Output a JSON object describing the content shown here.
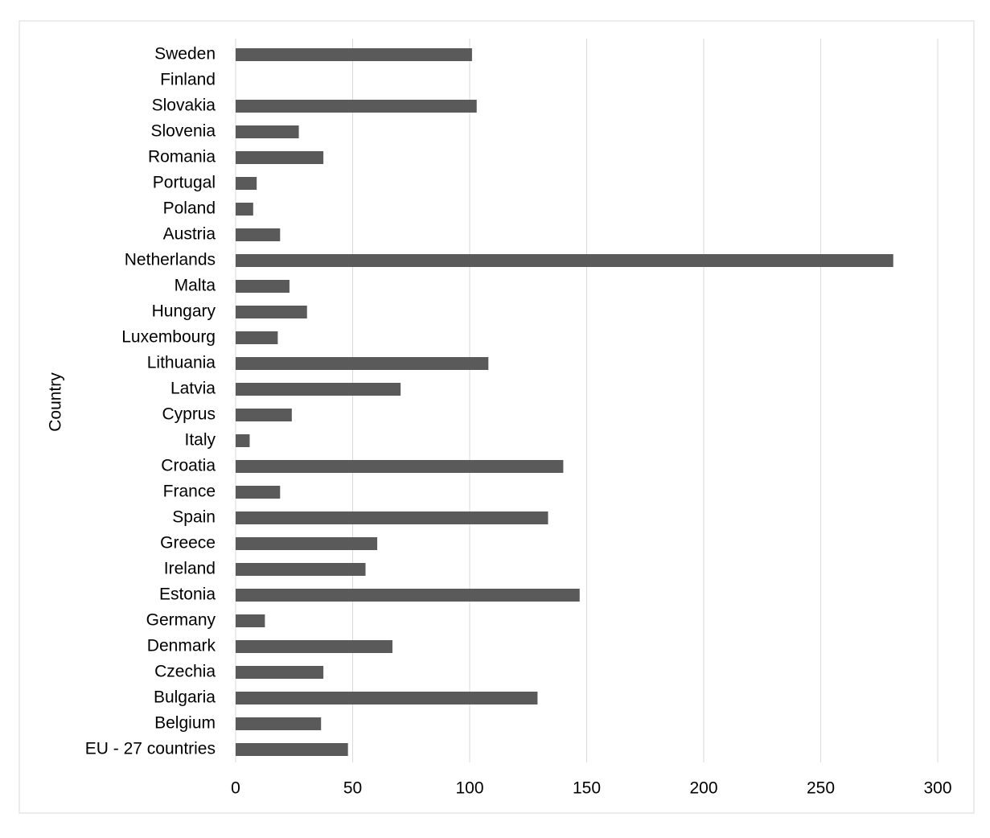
{
  "chart_data": {
    "type": "barh",
    "y_label": "Country",
    "categories": [
      "Sweden",
      "Finland",
      "Slovakia",
      "Slovenia",
      "Romania",
      "Portugal",
      "Poland",
      "Austria",
      "Netherlands",
      "Malta",
      "Hungary",
      "Luxembourg",
      "Lithuania",
      "Latvia",
      "Cyprus",
      "Italy",
      "Croatia",
      "France",
      "Spain",
      "Greece",
      "Ireland",
      "Estonia",
      "Germany",
      "Denmark",
      "Czechia",
      "Bulgaria",
      "Belgium",
      "EU - 27 countries"
    ],
    "values": [
      101,
      null,
      103,
      27,
      37.5,
      9,
      7.5,
      19,
      281,
      23,
      30.5,
      18,
      108,
      70.5,
      24,
      6,
      140,
      19,
      133.5,
      60.5,
      55.5,
      147,
      12.5,
      67,
      37.5,
      129,
      36.5,
      48
    ],
    "color": "#5a5a5a",
    "xlim": [
      0,
      300
    ],
    "xticks": [
      0,
      50,
      100,
      150,
      200,
      250,
      300
    ],
    "grid": true
  }
}
